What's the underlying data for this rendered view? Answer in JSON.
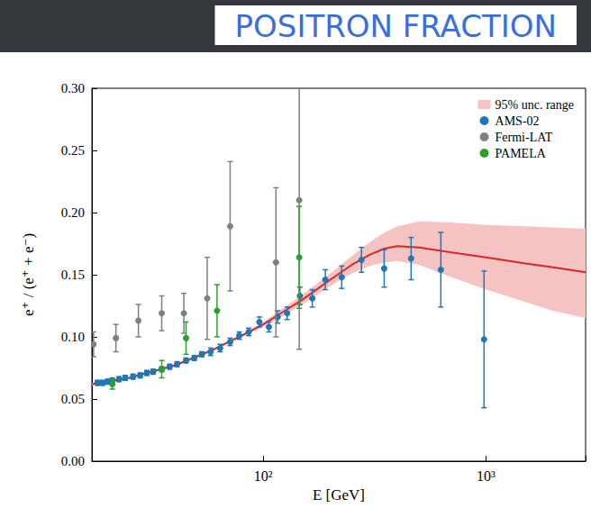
{
  "chart_data": {
    "type": "scatter",
    "title": "POSITRON FRACTION",
    "xlabel": "E [GeV]",
    "ylabel": "e⁺ / (e⁺ + e⁻)",
    "log": "x",
    "grid": false,
    "legend": "upper right",
    "xlim": [
      17,
      2800
    ],
    "ylim": [
      0,
      0.3
    ],
    "xticks": [
      {
        "value": 100,
        "label": "10²"
      },
      {
        "value": 1000,
        "label": "10³"
      }
    ],
    "yticks": [
      {
        "value": 0,
        "label": "0.00"
      },
      {
        "value": 0.05,
        "label": "0.05"
      },
      {
        "value": 0.1,
        "label": "0.10"
      },
      {
        "value": 0.15,
        "label": "0.15"
      },
      {
        "value": 0.2,
        "label": "0.20"
      },
      {
        "value": 0.25,
        "label": "0.25"
      },
      {
        "value": 0.3,
        "label": "0.30"
      }
    ],
    "series": [
      {
        "type": "band",
        "name": "95% unc. range",
        "color": "#f6c3c3",
        "x": [
          17,
          20,
          25,
          30,
          40,
          50,
          60,
          70,
          80,
          100,
          120,
          150,
          200,
          250,
          300,
          350,
          400,
          500,
          700,
          1000,
          1500,
          2000,
          2800
        ],
        "lower": [
          0.061,
          0.063,
          0.066,
          0.07,
          0.076,
          0.083,
          0.089,
          0.095,
          0.1,
          0.108,
          0.116,
          0.126,
          0.141,
          0.151,
          0.157,
          0.16,
          0.161,
          0.158,
          0.148,
          0.138,
          0.128,
          0.121,
          0.115
        ],
        "upper": [
          0.063,
          0.065,
          0.068,
          0.072,
          0.078,
          0.085,
          0.091,
          0.097,
          0.102,
          0.112,
          0.122,
          0.134,
          0.151,
          0.165,
          0.176,
          0.184,
          0.189,
          0.193,
          0.192,
          0.19,
          0.189,
          0.188,
          0.187
        ]
      },
      {
        "type": "line",
        "color": "#d62728",
        "line_style": "solid",
        "x": [
          17,
          20,
          25,
          30,
          40,
          50,
          60,
          70,
          80,
          100,
          120,
          150,
          200,
          250,
          300,
          350,
          400,
          500,
          700,
          1000,
          1500,
          2000,
          2800
        ],
        "values": [
          0.062,
          0.064,
          0.067,
          0.071,
          0.077,
          0.084,
          0.09,
          0.096,
          0.101,
          0.11,
          0.119,
          0.13,
          0.146,
          0.158,
          0.166,
          0.171,
          0.173,
          0.172,
          0.168,
          0.164,
          0.159,
          0.156,
          0.152
        ]
      },
      {
        "type": "scatter",
        "name": "AMS-02",
        "color": "#1f77b4",
        "marker": "o",
        "x": [
          18,
          19,
          20,
          21,
          22.5,
          24,
          26,
          28,
          30,
          32,
          35,
          38,
          41,
          45,
          49,
          53,
          58,
          64,
          71,
          78,
          86,
          96,
          106,
          116,
          128,
          146,
          166,
          190,
          225,
          276,
          349,
          461,
          627,
          980
        ],
        "values": [
          0.063,
          0.063,
          0.064,
          0.065,
          0.066,
          0.067,
          0.068,
          0.069,
          0.071,
          0.072,
          0.074,
          0.076,
          0.078,
          0.081,
          0.083,
          0.086,
          0.088,
          0.091,
          0.096,
          0.101,
          0.104,
          0.112,
          0.108,
          0.116,
          0.119,
          0.133,
          0.131,
          0.146,
          0.148,
          0.162,
          0.155,
          0.163,
          0.154,
          0.098
        ],
        "errors": [
          0.002,
          0.002,
          0.002,
          0.002,
          0.002,
          0.002,
          0.002,
          0.002,
          0.002,
          0.002,
          0.002,
          0.002,
          0.002,
          0.002,
          0.002,
          0.002,
          0.003,
          0.003,
          0.003,
          0.003,
          0.003,
          0.004,
          0.004,
          0.005,
          0.005,
          0.007,
          0.007,
          0.008,
          0.009,
          0.01,
          0.015,
          0.017,
          0.03,
          0.055
        ]
      },
      {
        "type": "scatter",
        "name": "Fermi-LAT",
        "color": "#808080",
        "marker": "o",
        "x": [
          17.3,
          21.8,
          27.5,
          35,
          44,
          56,
          71,
          114,
          145
        ],
        "values": [
          0.094,
          0.099,
          0.113,
          0.119,
          0.119,
          0.131,
          0.189,
          0.16,
          0.21
        ],
        "errors": [
          0.01,
          0.011,
          0.013,
          0.014,
          0.016,
          0.033,
          0.052,
          0.06,
          0.12
        ]
      },
      {
        "type": "scatter",
        "name": "PAMELA",
        "color": "#2ca02c",
        "marker": "o",
        "x": [
          21,
          35,
          45,
          62,
          145
        ],
        "values": [
          0.062,
          0.074,
          0.099,
          0.121,
          0.164
        ],
        "errors": [
          0.004,
          0.007,
          0.013,
          0.021,
          0.041
        ]
      }
    ]
  }
}
